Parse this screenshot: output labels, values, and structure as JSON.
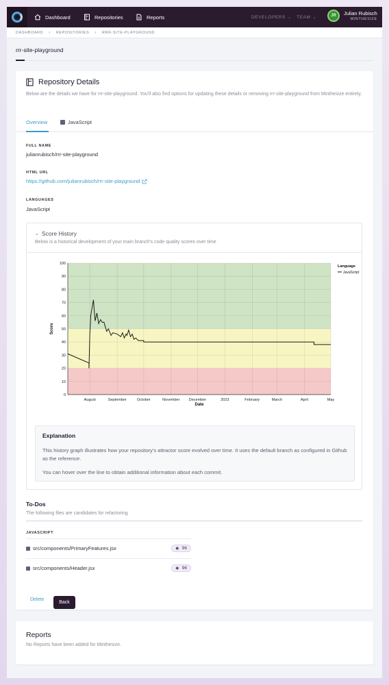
{
  "nav": {
    "items": [
      {
        "label": "Dashboard",
        "icon": "home-icon"
      },
      {
        "label": "Repositories",
        "icon": "book-icon"
      },
      {
        "label": "Reports",
        "icon": "document-icon"
      }
    ],
    "developers_label": "DEVELOPERS",
    "team_label": "TEAM",
    "user_name": "Julian Rubisch",
    "user_org": "MINTHESIZE",
    "avatar_initials": "JR"
  },
  "breadcrumb": [
    "DASHBOARD",
    "REPOSITORIES",
    "RRR-SITE-PLAYGROUND"
  ],
  "page_title": "rrr-site-playground",
  "details": {
    "title": "Repository Details",
    "description": "Below are the details we have for rrr-site-playground. You'll also find options for updating these details or removing rrr-site-playground from Minthesize entirely.",
    "tabs": [
      "Overview",
      "JavaScript"
    ],
    "full_name_label": "FULL NAME",
    "full_name": "julianrubisch/rrr-site-playground",
    "html_url_label": "HTML URL",
    "html_url": "https://github.com/julianrubisch/rrr-site-playground",
    "languages_label": "LANGUAGES",
    "languages": "JavaScript"
  },
  "score_history": {
    "title": "Score History",
    "description": "Below is a historical development of your main branch's code quality scores over time"
  },
  "chart_data": {
    "type": "line",
    "title": "",
    "xlabel": "Date",
    "ylabel": "Score",
    "ylim": [
      0,
      100
    ],
    "yticks": [
      0,
      10,
      20,
      30,
      40,
      50,
      60,
      70,
      80,
      90,
      100
    ],
    "xtick_labels": [
      "August",
      "September",
      "October",
      "November",
      "December",
      "2023",
      "February",
      "March",
      "April",
      "May"
    ],
    "xtick_dates": [
      "2022-08-01",
      "2022-09-01",
      "2022-10-01",
      "2022-11-01",
      "2022-12-01",
      "2023-01-01",
      "2023-02-01",
      "2023-03-01",
      "2023-04-01",
      "2023-05-01"
    ],
    "xlim": [
      "2022-07-07",
      "2023-05-01"
    ],
    "bands": [
      {
        "from": 0,
        "to": 20,
        "color": "#f6c9c9"
      },
      {
        "from": 20,
        "to": 50,
        "color": "#f7f6c2"
      },
      {
        "from": 50,
        "to": 100,
        "color": "#cfe3c5"
      }
    ],
    "legend_title": "Language",
    "legend_position": "right",
    "series": [
      {
        "name": "JavaScript",
        "color": "#1a1a1a",
        "x": [
          "2022-07-07",
          "2022-07-31",
          "2022-07-31",
          "2022-08-01",
          "2022-08-02",
          "2022-08-05",
          "2022-08-07",
          "2022-08-09",
          "2022-08-11",
          "2022-08-13",
          "2022-08-15",
          "2022-08-17",
          "2022-08-20",
          "2022-08-22",
          "2022-08-25",
          "2022-08-27",
          "2022-09-01",
          "2022-09-05",
          "2022-09-07",
          "2022-09-09",
          "2022-09-11",
          "2022-09-12",
          "2022-09-14",
          "2022-09-16",
          "2022-09-18",
          "2022-09-20",
          "2022-09-22",
          "2022-09-25",
          "2022-09-27",
          "2022-10-01",
          "2022-10-01",
          "2023-04-12",
          "2023-04-12",
          "2023-05-01"
        ],
        "y": [
          31,
          24,
          20,
          46,
          60,
          72,
          56,
          62,
          54,
          57,
          55,
          55,
          48,
          50,
          45,
          47,
          46,
          44,
          47,
          43,
          46,
          45,
          49,
          44,
          46,
          42,
          43,
          41,
          41,
          41,
          40,
          40,
          38,
          38
        ]
      }
    ]
  },
  "explanation": {
    "title": "Explanation",
    "p1": "This history graph illustrates how your repository's attractor score evolved over time. It uses the default branch as configured in Github as the reference.",
    "p2": "You can hover over the line to obtain additional information about each commit."
  },
  "todos": {
    "title": "To-Dos",
    "description": "The following files are candidates for refactoring",
    "language_label": "JAVASCRIPT",
    "files": [
      {
        "path": "src/components/PrimaryFeatures.jsx",
        "score": "96"
      },
      {
        "path": "src/components/Header.jsx",
        "score": "96"
      }
    ]
  },
  "actions": {
    "delete_label": "Delete",
    "back_label": "Back"
  },
  "reports": {
    "title": "Reports",
    "description": "No Reports have been added for Minthesize."
  }
}
